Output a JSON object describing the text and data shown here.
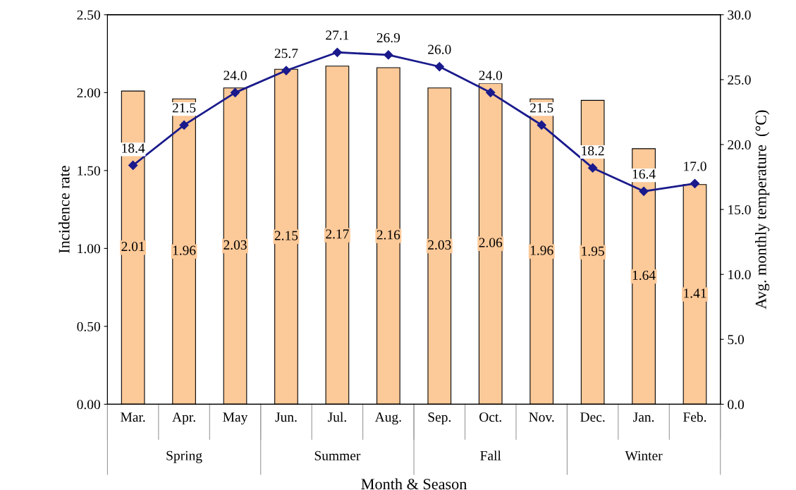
{
  "chart_data": {
    "type": "bar",
    "xlabel": "Month & Season",
    "ylabel": "Incidence rate",
    "y2label": "Avg. monthly temperature  (°C)",
    "categories": [
      "Mar.",
      "Apr.",
      "May",
      "Jun.",
      "Jul.",
      "Aug.",
      "Sep.",
      "Oct.",
      "Nov.",
      "Dec.",
      "Jan.",
      "Feb."
    ],
    "series": [
      {
        "color": "#fcc998",
        "values": [
          2.01,
          1.96,
          2.03,
          2.15,
          2.17,
          2.16,
          2.03,
          2.06,
          1.96,
          1.95,
          1.64,
          1.41
        ]
      },
      {
        "type": "line",
        "axis": "y2",
        "color": "#1a1a8c",
        "marker": "diamond",
        "values": [
          18.4,
          21.5,
          24.0,
          25.7,
          27.1,
          26.9,
          26.0,
          24.0,
          21.5,
          18.2,
          16.4,
          17.0
        ],
        "value_labels": [
          "18.4",
          "21.5",
          "24.0",
          "25.7",
          "27.1",
          "26.9",
          "26.0",
          "24.0",
          "21.5",
          "18.2",
          "16.4",
          "17.0"
        ]
      }
    ],
    "data_labels": true,
    "grid": false,
    "legend": false,
    "ylim": [
      0,
      2.5
    ],
    "yticks": [
      {
        "value": 0,
        "label": "0.00"
      },
      {
        "value": 0.5,
        "label": "0.50"
      },
      {
        "value": 1,
        "label": "1.00"
      },
      {
        "value": 1.5,
        "label": "1.50"
      },
      {
        "value": 2,
        "label": "2.00"
      },
      {
        "value": 2.5,
        "label": "2.50"
      }
    ],
    "y2lim": [
      0,
      30
    ],
    "y2ticks": [
      {
        "value": 0,
        "label": "0.0"
      },
      {
        "value": 5,
        "label": "5.0"
      },
      {
        "value": 10,
        "label": "10.0"
      },
      {
        "value": 15,
        "label": "15.0"
      },
      {
        "value": 20,
        "label": "20.0"
      },
      {
        "value": 25,
        "label": "25.0"
      },
      {
        "value": 30,
        "label": "30.0"
      }
    ],
    "annotations": [
      "Spring",
      "Summer",
      "Fall",
      "Winter"
    ]
  }
}
